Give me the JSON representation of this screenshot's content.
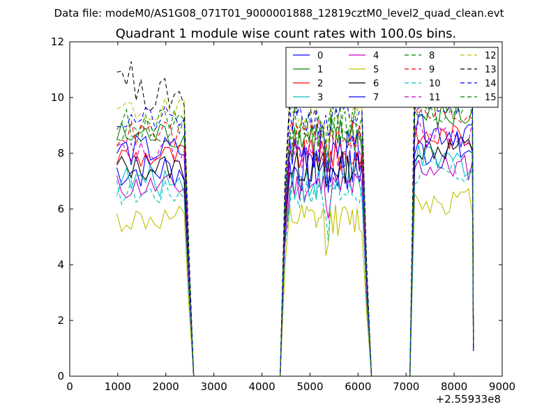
{
  "header": {
    "data_file": "Data file: modeM0/AS1G08_071T01_9000001888_12819cztM0_level2_quad_clean.evt"
  },
  "chart_data": {
    "type": "line",
    "title": "Quadrant 1 module wise count rates with 100.0s bins.",
    "xlabel": "",
    "ylabel": "",
    "x_offset_label": "+2.55933e8",
    "xlim": [
      0,
      9000
    ],
    "ylim": [
      0,
      12
    ],
    "xticks": [
      0,
      1000,
      2000,
      3000,
      4000,
      5000,
      6000,
      7000,
      8000,
      9000
    ],
    "yticks": [
      0,
      2,
      4,
      6,
      8,
      10,
      12
    ],
    "grid": false,
    "legend": {
      "placement": "top-right",
      "columns": 4
    },
    "segments": [
      {
        "x_start": 980,
        "x_end": 2380,
        "y_end_x": [
          2480,
          2580
        ]
      },
      {
        "x_start": 4580,
        "x_end": 6120,
        "ramp_x": [
          4380,
          4480
        ],
        "y_end_x": [
          6180,
          6280
        ]
      },
      {
        "x_start": 7180,
        "x_end": 8380,
        "ramp_x": [
          7080,
          7180
        ],
        "y_end_x": [
          8400
        ]
      }
    ],
    "series": [
      {
        "name": "0",
        "color": "#0000ff",
        "style": "solid",
        "level": 7.4,
        "amp": 0.7
      },
      {
        "name": "1",
        "color": "#008000",
        "style": "solid",
        "level": 8.6,
        "amp": 0.6
      },
      {
        "name": "2",
        "color": "#ff0000",
        "style": "solid",
        "level": 7.9,
        "amp": 0.5
      },
      {
        "name": "3",
        "color": "#00bfbf",
        "style": "solid",
        "level": 7.0,
        "amp": 0.6
      },
      {
        "name": "4",
        "color": "#bf00bf",
        "style": "solid",
        "level": 6.8,
        "amp": 0.5
      },
      {
        "name": "5",
        "color": "#bfbf00",
        "style": "solid",
        "level": 5.6,
        "amp": 0.5
      },
      {
        "name": "6",
        "color": "#000000",
        "style": "solid",
        "level": 7.5,
        "amp": 0.5
      },
      {
        "name": "7",
        "color": "#0000ff",
        "style": "solid",
        "level": 8.1,
        "amp": 0.6
      },
      {
        "name": "8",
        "color": "#008000",
        "style": "dashed",
        "level": 9.1,
        "amp": 0.5
      },
      {
        "name": "9",
        "color": "#ff0000",
        "style": "dashed",
        "level": 8.7,
        "amp": 0.5
      },
      {
        "name": "10",
        "color": "#00bfbf",
        "style": "dashed",
        "level": 6.6,
        "amp": 0.5
      },
      {
        "name": "11",
        "color": "#bf00bf",
        "style": "dashed",
        "level": 8.0,
        "amp": 0.5
      },
      {
        "name": "12",
        "color": "#bfbf00",
        "style": "dashed",
        "level": 9.5,
        "amp": 0.5
      },
      {
        "name": "13",
        "color": "#000000",
        "style": "dashed",
        "level": 10.1,
        "amp": 0.6
      },
      {
        "name": "14",
        "color": "#0000ff",
        "style": "dashed",
        "level": 9.2,
        "amp": 0.5
      },
      {
        "name": "15",
        "color": "#008000",
        "style": "dashed",
        "level": 8.9,
        "amp": 0.5
      }
    ]
  }
}
